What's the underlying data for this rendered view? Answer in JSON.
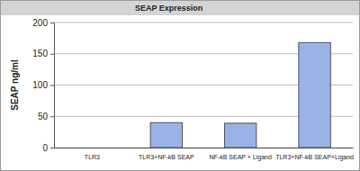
{
  "chart_data": {
    "type": "bar",
    "title": "SEAP Expression",
    "y_label": "SEAP ng/ml",
    "categories": [
      "TLR3",
      "TLR3+NF-kB SEAP",
      "NF-kB SEAP + Ligand",
      "TLR3+NF-kB SEAP+Ligand"
    ],
    "values": [
      0,
      40,
      39,
      168
    ],
    "color": "#99b3e6",
    "ylim": [
      0,
      200
    ],
    "yticks": [
      0,
      50,
      100,
      150,
      200
    ],
    "grid": true
  }
}
